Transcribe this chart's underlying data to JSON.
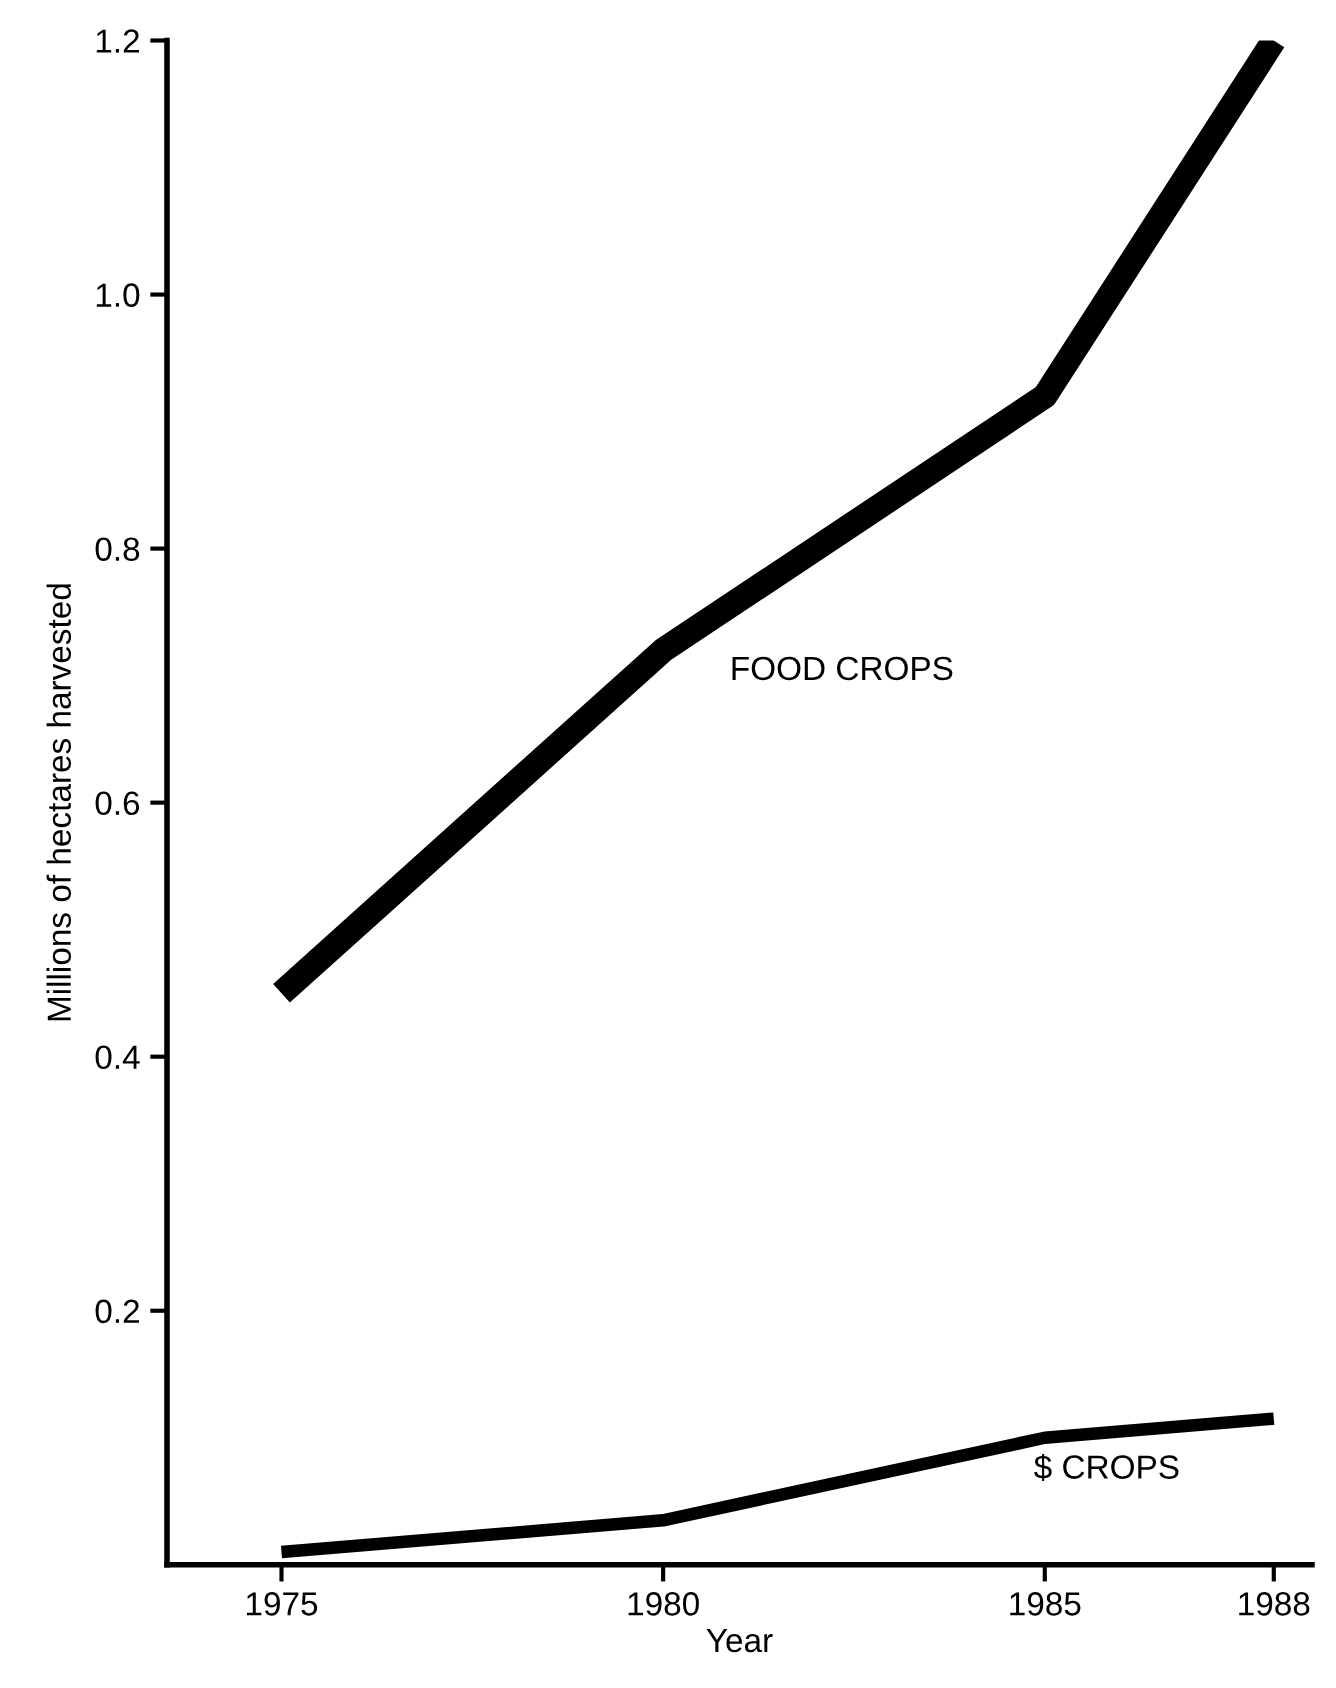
{
  "chart_data": {
    "type": "line",
    "xlabel": "Year",
    "ylabel": "Millions of hectares harvested",
    "x": [
      1975,
      1980,
      1985,
      1988
    ],
    "series": [
      {
        "name": "FOOD CROPS",
        "color": "#000000",
        "values": [
          0.45,
          0.72,
          0.92,
          1.2
        ]
      },
      {
        "name": "$ CROPS",
        "color": "#000000",
        "values": [
          0.01,
          0.035,
          0.1,
          0.115
        ]
      }
    ],
    "xlim": [
      1973.5,
      1988.5
    ],
    "xticks": [
      1975,
      1980,
      1985,
      1988
    ],
    "ylim": [
      0,
      1.2
    ],
    "yticks": [
      0.2,
      0.4,
      0.6,
      0.8,
      {
        "value": 1.0,
        "label": "1.0"
      },
      1.2
    ],
    "grid": false,
    "legend": false,
    "marker": "none",
    "line_style": "solid"
  }
}
